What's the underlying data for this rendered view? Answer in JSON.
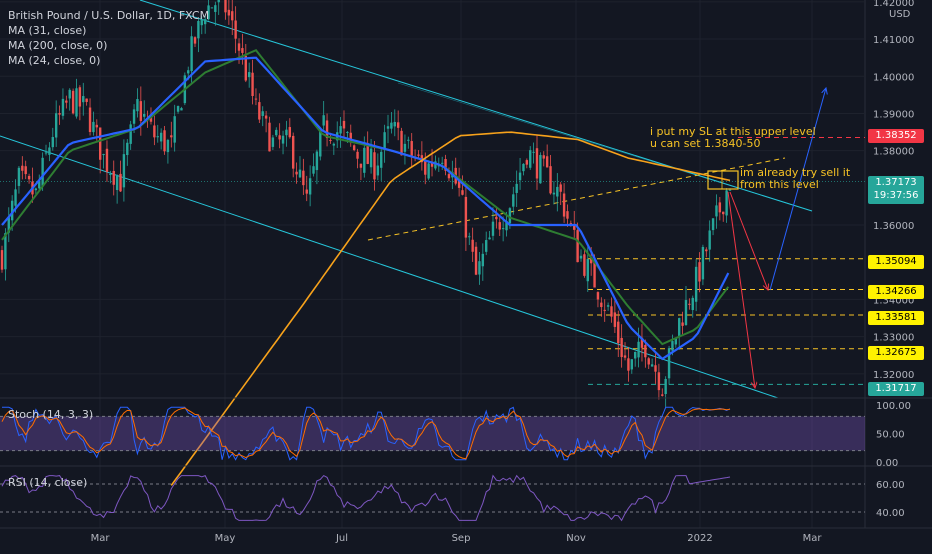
{
  "header": {
    "symbol": "British Pound / U.S. Dollar, 1D, FXCM",
    "indicators": [
      "MA (31, close)",
      "MA (200, close, 0)",
      "MA (24, close, 0)"
    ]
  },
  "price_axis": {
    "currency": "USD",
    "ticks": [
      "1.42000",
      "1.41000",
      "1.40000",
      "1.39000",
      "1.38000",
      "1.36000",
      "1.34000",
      "1.33000",
      "1.32000"
    ],
    "tick_values": [
      1.42,
      1.41,
      1.4,
      1.39,
      1.38,
      1.36,
      1.34,
      1.33,
      1.32
    ],
    "current_price": "1.37173",
    "countdown": "19:37:56",
    "levels": [
      {
        "label": "1.38352",
        "value": 1.38352,
        "style": "red"
      },
      {
        "label": "1.35094",
        "value": 1.35094,
        "style": "yellow"
      },
      {
        "label": "1.34266",
        "value": 1.34266,
        "style": "yellow"
      },
      {
        "label": "1.33581",
        "value": 1.33581,
        "style": "yellow"
      },
      {
        "label": "1.32675",
        "value": 1.32675,
        "style": "yellow"
      },
      {
        "label": "1.31717",
        "value": 1.31717,
        "style": "teal"
      }
    ]
  },
  "time_axis": {
    "labels": [
      "Mar",
      "May",
      "Jul",
      "Sep",
      "Nov",
      "2022",
      "Mar"
    ]
  },
  "annotations": {
    "sl_note_line1": "i put my SL at this upper level",
    "sl_note_line2": "u can set 1.3840-50",
    "sell_note_line1": "im already try sell it",
    "sell_note_line2": "from this level"
  },
  "stoch": {
    "title": "Stoch (14, 3, 3)",
    "ticks": [
      "100.00",
      "50.00",
      "0.00"
    ]
  },
  "rsi": {
    "title": "RSI (14, close)",
    "ticks": [
      "60.00",
      "40.00"
    ]
  },
  "colors": {
    "background": "#131722",
    "up": "#26a69a",
    "down": "#ef5350",
    "ma31": "#2962ff",
    "ma200": "#f7a21b",
    "ma24": "#2e7d32",
    "channel": "#26c6da",
    "stoch_band": "#7e57c2"
  },
  "chart_data": {
    "type": "candlestick",
    "symbol": "GBPUSD",
    "timeframe": "1D",
    "months": [
      "Mar",
      "May",
      "Jul",
      "Sep",
      "Nov",
      "2022",
      "Mar"
    ],
    "approx_close_path": [
      [
        0,
        1.352
      ],
      [
        10,
        1.372
      ],
      [
        20,
        1.368
      ],
      [
        30,
        1.385
      ],
      [
        40,
        1.394
      ],
      [
        50,
        1.391
      ],
      [
        60,
        1.378
      ],
      [
        70,
        1.372
      ],
      [
        80,
        1.392
      ],
      [
        90,
        1.384
      ],
      [
        100,
        1.381
      ],
      [
        110,
        1.404
      ],
      [
        120,
        1.418
      ],
      [
        130,
        1.421
      ],
      [
        140,
        1.408
      ],
      [
        150,
        1.391
      ],
      [
        160,
        1.382
      ],
      [
        170,
        1.382
      ],
      [
        180,
        1.366
      ],
      [
        190,
        1.386
      ],
      [
        200,
        1.385
      ],
      [
        210,
        1.379
      ],
      [
        220,
        1.376
      ],
      [
        230,
        1.386
      ],
      [
        240,
        1.38
      ],
      [
        250,
        1.375
      ],
      [
        260,
        1.38
      ],
      [
        270,
        1.369
      ],
      [
        280,
        1.346
      ],
      [
        290,
        1.358
      ],
      [
        300,
        1.366
      ],
      [
        310,
        1.38
      ],
      [
        320,
        1.374
      ],
      [
        330,
        1.368
      ],
      [
        340,
        1.353
      ],
      [
        350,
        1.345
      ],
      [
        360,
        1.335
      ],
      [
        370,
        1.321
      ],
      [
        380,
        1.328
      ],
      [
        390,
        1.317
      ],
      [
        400,
        1.334
      ],
      [
        410,
        1.345
      ],
      [
        420,
        1.359
      ],
      [
        430,
        1.372
      ]
    ],
    "ma31_path": [
      [
        0,
        1.36
      ],
      [
        40,
        1.382
      ],
      [
        80,
        1.386
      ],
      [
        120,
        1.404
      ],
      [
        150,
        1.405
      ],
      [
        190,
        1.385
      ],
      [
        230,
        1.38
      ],
      [
        260,
        1.376
      ],
      [
        300,
        1.36
      ],
      [
        340,
        1.36
      ],
      [
        370,
        1.333
      ],
      [
        390,
        1.324
      ],
      [
        410,
        1.33
      ],
      [
        430,
        1.348
      ]
    ],
    "ma24_path": [
      [
        0,
        1.356
      ],
      [
        40,
        1.38
      ],
      [
        80,
        1.386
      ],
      [
        120,
        1.401
      ],
      [
        150,
        1.407
      ],
      [
        190,
        1.384
      ],
      [
        230,
        1.38
      ],
      [
        260,
        1.376
      ],
      [
        300,
        1.362
      ],
      [
        340,
        1.356
      ],
      [
        370,
        1.338
      ],
      [
        390,
        1.328
      ],
      [
        410,
        1.332
      ],
      [
        430,
        1.344
      ]
    ],
    "ma200_path": [
      [
        100,
        1.29
      ],
      [
        180,
        1.34
      ],
      [
        230,
        1.372
      ],
      [
        270,
        1.384
      ],
      [
        300,
        1.385
      ],
      [
        340,
        1.383
      ],
      [
        370,
        1.378
      ],
      [
        390,
        1.376
      ],
      [
        430,
        1.372
      ]
    ],
    "ylim": [
      1.3135,
      1.4205
    ]
  }
}
